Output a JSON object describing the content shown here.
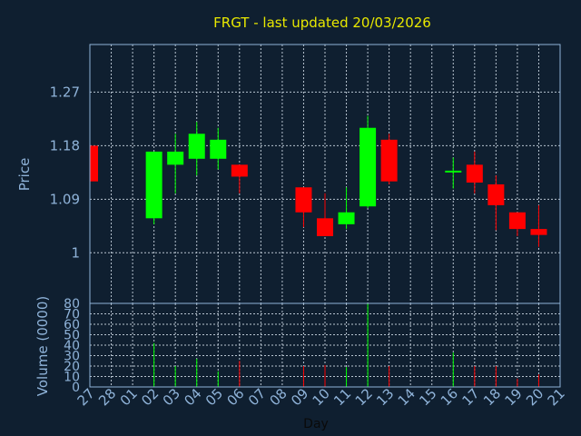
{
  "title": "FRGT - last updated 20/03/2026",
  "colors": {
    "background": "#0f1f30",
    "frame": "#8fb3d9",
    "grid": "#b8c4d0",
    "title": "#e8e800",
    "up": "#00ff00",
    "down": "#ff0000"
  },
  "chart_data": [
    {
      "type": "candlestick",
      "ylabel": "Price",
      "ylim": [
        0.915,
        1.35
      ],
      "yticks": [
        1,
        1.09,
        1.18,
        1.27
      ],
      "ytick_labels": [
        "1",
        "1.09",
        "1.18",
        "1.27"
      ],
      "grid": true,
      "categories": [
        "27",
        "28",
        "01",
        "02",
        "03",
        "04",
        "05",
        "06",
        "07",
        "08",
        "09",
        "10",
        "11",
        "12",
        "13",
        "14",
        "15",
        "16",
        "17",
        "18",
        "19",
        "20",
        "21"
      ],
      "candles": [
        {
          "x": "27",
          "open": 1.18,
          "close": 1.12,
          "high": 1.18,
          "low": 1.12
        },
        {
          "x": "02",
          "open": 1.058,
          "close": 1.17,
          "high": 1.17,
          "low": 1.048
        },
        {
          "x": "03",
          "open": 1.148,
          "close": 1.17,
          "high": 1.2,
          "low": 1.1
        },
        {
          "x": "04",
          "open": 1.158,
          "close": 1.2,
          "high": 1.22,
          "low": 1.13
        },
        {
          "x": "05",
          "open": 1.158,
          "close": 1.19,
          "high": 1.21,
          "low": 1.14
        },
        {
          "x": "06",
          "open": 1.148,
          "close": 1.128,
          "high": 1.148,
          "low": 1.1
        },
        {
          "x": "09",
          "open": 1.11,
          "close": 1.068,
          "high": 1.11,
          "low": 1.043
        },
        {
          "x": "10",
          "open": 1.058,
          "close": 1.028,
          "high": 1.1,
          "low": 1.028
        },
        {
          "x": "11",
          "open": 1.048,
          "close": 1.068,
          "high": 1.11,
          "low": 1.04
        },
        {
          "x": "12",
          "open": 1.078,
          "close": 1.21,
          "high": 1.23,
          "low": 1.075
        },
        {
          "x": "13",
          "open": 1.19,
          "close": 1.12,
          "high": 1.2,
          "low": 1.115
        },
        {
          "x": "16",
          "open": 1.135,
          "close": 1.138,
          "high": 1.16,
          "low": 1.108
        },
        {
          "x": "17",
          "open": 1.148,
          "close": 1.118,
          "high": 1.17,
          "low": 1.1
        },
        {
          "x": "18",
          "open": 1.115,
          "close": 1.08,
          "high": 1.13,
          "low": 1.038
        },
        {
          "x": "19",
          "open": 1.068,
          "close": 1.04,
          "high": 1.068,
          "low": 1.028
        },
        {
          "x": "20",
          "open": 1.04,
          "close": 1.03,
          "high": 1.08,
          "low": 1.01
        }
      ]
    },
    {
      "type": "bar",
      "ylabel": "Volume (0000)",
      "xlabel": "Day",
      "ylim": [
        0,
        80
      ],
      "yticks": [
        0,
        10,
        20,
        30,
        40,
        50,
        60,
        70,
        80
      ],
      "ytick_labels": [
        "0",
        "10",
        "20",
        "30",
        "40",
        "50",
        "60",
        "70",
        "80"
      ],
      "categories": [
        "27",
        "28",
        "01",
        "02",
        "03",
        "04",
        "05",
        "06",
        "07",
        "08",
        "09",
        "10",
        "11",
        "12",
        "13",
        "14",
        "15",
        "16",
        "17",
        "18",
        "19",
        "20",
        "21"
      ],
      "bars": [
        {
          "x": "02",
          "value": 42,
          "direction": "up"
        },
        {
          "x": "03",
          "value": 20,
          "direction": "up"
        },
        {
          "x": "04",
          "value": 27,
          "direction": "up"
        },
        {
          "x": "05",
          "value": 15,
          "direction": "up"
        },
        {
          "x": "06",
          "value": 25,
          "direction": "down"
        },
        {
          "x": "09",
          "value": 20,
          "direction": "down"
        },
        {
          "x": "10",
          "value": 21,
          "direction": "down"
        },
        {
          "x": "11",
          "value": 19,
          "direction": "up"
        },
        {
          "x": "12",
          "value": 80,
          "direction": "up"
        },
        {
          "x": "13",
          "value": 20,
          "direction": "down"
        },
        {
          "x": "16",
          "value": 33,
          "direction": "up"
        },
        {
          "x": "17",
          "value": 20,
          "direction": "down"
        },
        {
          "x": "18",
          "value": 20,
          "direction": "down"
        },
        {
          "x": "19",
          "value": 8,
          "direction": "down"
        },
        {
          "x": "20",
          "value": 12,
          "direction": "down"
        }
      ]
    }
  ]
}
